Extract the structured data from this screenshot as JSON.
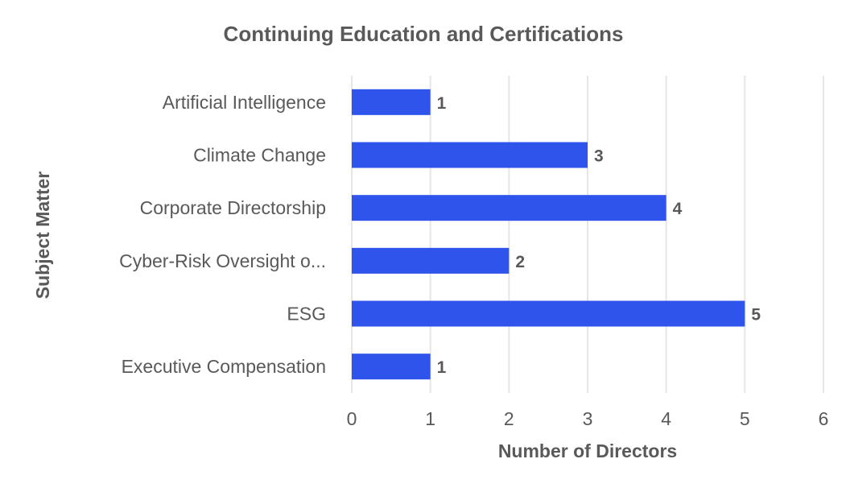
{
  "chart_data": {
    "type": "bar",
    "orientation": "horizontal",
    "title": "Continuing Education and Certifications",
    "xlabel": "Number of Directors",
    "ylabel": "Subject Matter",
    "categories": [
      "Artificial Intelligence",
      "Climate Change",
      "Corporate Directorship",
      "Cyber-Risk Oversight o...",
      "ESG",
      "Executive Compensation"
    ],
    "values": [
      1,
      3,
      4,
      2,
      5,
      1
    ],
    "data_labels": [
      "1",
      "3",
      "4",
      "2",
      "5",
      "1"
    ],
    "xlim": [
      0,
      6
    ],
    "xticks": [
      "0",
      "1",
      "2",
      "3",
      "4",
      "5",
      "6"
    ],
    "grid": true,
    "legend": "none",
    "bar_color": "#2f54eb"
  }
}
